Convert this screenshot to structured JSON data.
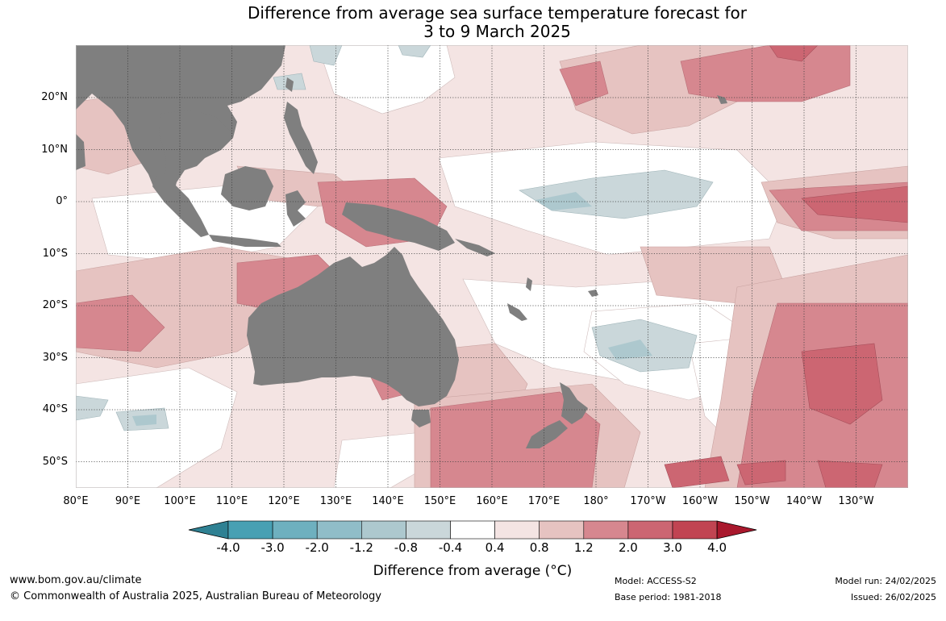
{
  "title": {
    "line1": "Difference from average sea surface temperature forecast for",
    "line2": "3 to 9 March 2025"
  },
  "map": {
    "lat_labels": [
      "20°N",
      "10°N",
      "0°",
      "10°S",
      "20°S",
      "30°S",
      "40°S",
      "50°S"
    ],
    "lon_labels": [
      "80°E",
      "90°E",
      "100°E",
      "110°E",
      "120°E",
      "130°E",
      "140°E",
      "150°E",
      "160°E",
      "170°E",
      "180°",
      "170°W",
      "160°W",
      "150°W",
      "140°W",
      "130°W"
    ],
    "colors": {
      "land": "#7f7f7f",
      "grid": "#404040"
    }
  },
  "colorbar": {
    "ticks": [
      "-4.0",
      "-3.0",
      "-2.0",
      "-1.2",
      "-0.8",
      "-0.4",
      "0.4",
      "0.8",
      "1.2",
      "2.0",
      "3.0",
      "4.0"
    ],
    "colors": [
      "#2f8193",
      "#48a0b3",
      "#6eb0bf",
      "#90bdc8",
      "#adc8ce",
      "#cad7da",
      "#ffffff",
      "#f4e4e3",
      "#e6c3c1",
      "#d6878f",
      "#cc6672",
      "#c14452",
      "#a9182d"
    ],
    "label": "Difference from average (°C)"
  },
  "footer": {
    "website": "www.bom.gov.au/climate",
    "copyright": "© Commonwealth of Australia 2025, Australian Bureau of Meteorology",
    "model": "Model: ACCESS-S2",
    "base_period": "Base period: 1981-2018",
    "model_run": "Model run: 24/02/2025",
    "issued": "Issued: 26/02/2025"
  }
}
